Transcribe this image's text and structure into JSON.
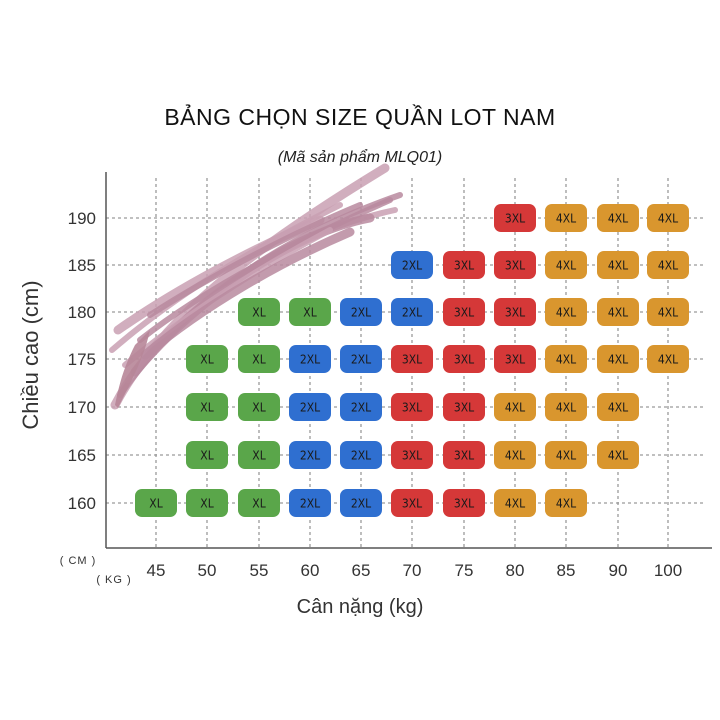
{
  "title": "BẢNG CHỌN SIZE QUẦN LOT NAM",
  "subtitle": "(Mã sản phẩm MLQ01)",
  "chart_data": {
    "type": "heatmap",
    "xlabel": "Cân nặng (kg)",
    "ylabel": "Chiều cao (cm)",
    "x_unit_label": "( KG )",
    "y_unit_label": "( CM )",
    "x": [
      45,
      50,
      55,
      60,
      65,
      70,
      75,
      80,
      85,
      90,
      100
    ],
    "y": [
      190,
      185,
      180,
      175,
      170,
      165,
      160
    ],
    "grid": true,
    "colors": {
      "XL": "#5aa64a",
      "2XL": "#2f6fd0",
      "3XL": "#d53838",
      "4XL": "#d9962e"
    },
    "cells": [
      {
        "height": 190,
        "weight": 80,
        "size": "3XL"
      },
      {
        "height": 190,
        "weight": 85,
        "size": "4XL"
      },
      {
        "height": 190,
        "weight": 90,
        "size": "4XL"
      },
      {
        "height": 190,
        "weight": 100,
        "size": "4XL"
      },
      {
        "height": 185,
        "weight": 70,
        "size": "2XL"
      },
      {
        "height": 185,
        "weight": 75,
        "size": "3XL"
      },
      {
        "height": 185,
        "weight": 80,
        "size": "3XL"
      },
      {
        "height": 185,
        "weight": 85,
        "size": "4XL"
      },
      {
        "height": 185,
        "weight": 90,
        "size": "4XL"
      },
      {
        "height": 185,
        "weight": 100,
        "size": "4XL"
      },
      {
        "height": 180,
        "weight": 55,
        "size": "XL"
      },
      {
        "height": 180,
        "weight": 60,
        "size": "XL"
      },
      {
        "height": 180,
        "weight": 65,
        "size": "2XL"
      },
      {
        "height": 180,
        "weight": 70,
        "size": "2XL"
      },
      {
        "height": 180,
        "weight": 75,
        "size": "3XL"
      },
      {
        "height": 180,
        "weight": 80,
        "size": "3XL"
      },
      {
        "height": 180,
        "weight": 85,
        "size": "4XL"
      },
      {
        "height": 180,
        "weight": 90,
        "size": "4XL"
      },
      {
        "height": 180,
        "weight": 100,
        "size": "4XL"
      },
      {
        "height": 175,
        "weight": 50,
        "size": "XL"
      },
      {
        "height": 175,
        "weight": 55,
        "size": "XL"
      },
      {
        "height": 175,
        "weight": 60,
        "size": "2XL"
      },
      {
        "height": 175,
        "weight": 65,
        "size": "2XL"
      },
      {
        "height": 175,
        "weight": 70,
        "size": "3XL"
      },
      {
        "height": 175,
        "weight": 75,
        "size": "3XL"
      },
      {
        "height": 175,
        "weight": 80,
        "size": "3XL"
      },
      {
        "height": 175,
        "weight": 85,
        "size": "4XL"
      },
      {
        "height": 175,
        "weight": 90,
        "size": "4XL"
      },
      {
        "height": 175,
        "weight": 100,
        "size": "4XL"
      },
      {
        "height": 170,
        "weight": 50,
        "size": "XL"
      },
      {
        "height": 170,
        "weight": 55,
        "size": "XL"
      },
      {
        "height": 170,
        "weight": 60,
        "size": "2XL"
      },
      {
        "height": 170,
        "weight": 65,
        "size": "2XL"
      },
      {
        "height": 170,
        "weight": 70,
        "size": "3XL"
      },
      {
        "height": 170,
        "weight": 75,
        "size": "3XL"
      },
      {
        "height": 170,
        "weight": 80,
        "size": "4XL"
      },
      {
        "height": 170,
        "weight": 85,
        "size": "4XL"
      },
      {
        "height": 170,
        "weight": 90,
        "size": "4XL"
      },
      {
        "height": 165,
        "weight": 50,
        "size": "XL"
      },
      {
        "height": 165,
        "weight": 55,
        "size": "XL"
      },
      {
        "height": 165,
        "weight": 60,
        "size": "2XL"
      },
      {
        "height": 165,
        "weight": 65,
        "size": "2XL"
      },
      {
        "height": 165,
        "weight": 70,
        "size": "3XL"
      },
      {
        "height": 165,
        "weight": 75,
        "size": "3XL"
      },
      {
        "height": 165,
        "weight": 80,
        "size": "4XL"
      },
      {
        "height": 165,
        "weight": 85,
        "size": "4XL"
      },
      {
        "height": 165,
        "weight": 90,
        "size": "4XL"
      },
      {
        "height": 160,
        "weight": 45,
        "size": "XL"
      },
      {
        "height": 160,
        "weight": 50,
        "size": "XL"
      },
      {
        "height": 160,
        "weight": 55,
        "size": "XL"
      },
      {
        "height": 160,
        "weight": 60,
        "size": "2XL"
      },
      {
        "height": 160,
        "weight": 65,
        "size": "2XL"
      },
      {
        "height": 160,
        "weight": 70,
        "size": "3XL"
      },
      {
        "height": 160,
        "weight": 75,
        "size": "3XL"
      },
      {
        "height": 160,
        "weight": 80,
        "size": "4XL"
      },
      {
        "height": 160,
        "weight": 85,
        "size": "4XL"
      }
    ]
  }
}
